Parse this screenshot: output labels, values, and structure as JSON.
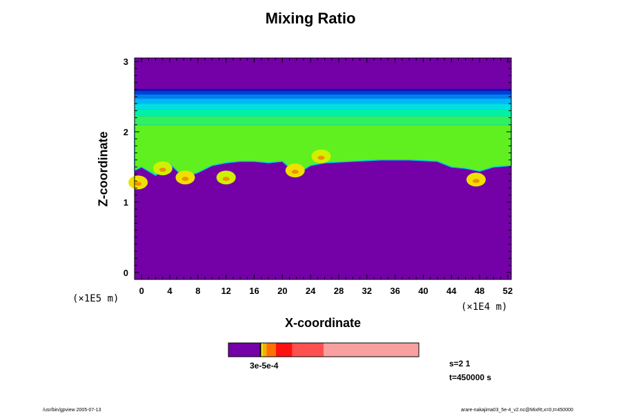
{
  "chart_data": {
    "type": "heatmap",
    "title": "Mixing Ratio",
    "xlabel": "X-coordinate",
    "ylabel": "Z-coordinate",
    "x_scale_label": "(×1E4 m)",
    "y_scale_label": "(×1E5 m)",
    "xlim": [
      -1,
      52.5
    ],
    "ylim": [
      -0.1,
      3.05
    ],
    "x_ticks": [
      "0",
      "4",
      "8",
      "12",
      "16",
      "20",
      "24",
      "28",
      "32",
      "36",
      "40",
      "44",
      "48",
      "52"
    ],
    "x_tick_values": [
      0,
      4,
      8,
      12,
      16,
      20,
      24,
      28,
      32,
      36,
      40,
      44,
      48,
      52
    ],
    "y_ticks": [
      "0",
      "1",
      "2",
      "3"
    ],
    "y_tick_values": [
      0,
      1,
      2,
      3
    ],
    "background_color": "#7400a8",
    "layers": [
      {
        "z_bottom": 2.58,
        "z_top": 2.61,
        "color": "#0018b8"
      },
      {
        "z_bottom": 2.53,
        "z_top": 2.58,
        "color": "#0040d8"
      },
      {
        "z_bottom": 2.47,
        "z_top": 2.53,
        "color": "#0080f0"
      },
      {
        "z_bottom": 2.4,
        "z_top": 2.47,
        "color": "#00b8f8"
      },
      {
        "z_bottom": 2.32,
        "z_top": 2.4,
        "color": "#00e0e0"
      },
      {
        "z_bottom": 2.22,
        "z_top": 2.32,
        "color": "#00f0a8"
      },
      {
        "z_bottom": 2.1,
        "z_top": 2.22,
        "color": "#30f060"
      }
    ],
    "boundary_layer": {
      "color": "#60f020",
      "top_z": 2.1,
      "bottom_x": [
        -1,
        0,
        2,
        4,
        6,
        8,
        10,
        12,
        14,
        16,
        18,
        20,
        22,
        24,
        26,
        28,
        30,
        32,
        34,
        36,
        38,
        40,
        42,
        44,
        46,
        48,
        50,
        52.5
      ],
      "bottom_z": [
        1.45,
        1.5,
        1.38,
        1.55,
        1.35,
        1.42,
        1.52,
        1.56,
        1.58,
        1.58,
        1.56,
        1.58,
        1.4,
        1.52,
        1.56,
        1.57,
        1.58,
        1.59,
        1.6,
        1.6,
        1.6,
        1.59,
        1.58,
        1.5,
        1.48,
        1.44,
        1.5,
        1.52
      ]
    },
    "plumes": [
      {
        "x": 3,
        "z": 1.48,
        "color": "#d0f000"
      },
      {
        "x": 6.2,
        "z": 1.35,
        "color": "#f0e000"
      },
      {
        "x": 12,
        "z": 1.35,
        "color": "#d0f000"
      },
      {
        "x": 21.8,
        "z": 1.45,
        "color": "#f0e000"
      },
      {
        "x": 25.5,
        "z": 1.65,
        "color": "#d0f000"
      },
      {
        "x": 47.5,
        "z": 1.32,
        "color": "#f0e000"
      },
      {
        "x": -0.5,
        "z": 1.28,
        "color": "#f0e000"
      }
    ],
    "colorbar": {
      "label": "3e-5e-4",
      "segments": [
        {
          "fraction": 0.165,
          "color": "#7400a8"
        },
        {
          "fraction": 0.007,
          "color": "#000000"
        },
        {
          "fraction": 0.008,
          "color": "#f0f000"
        },
        {
          "fraction": 0.02,
          "color": "#f0b000"
        },
        {
          "fraction": 0.05,
          "color": "#ff7000"
        },
        {
          "fraction": 0.085,
          "color": "#ff1010"
        },
        {
          "fraction": 0.165,
          "color": "#ff5050"
        },
        {
          "fraction": 0.5,
          "color": "#f8a0a0"
        }
      ]
    }
  },
  "info": {
    "s_label": "s=2 1",
    "time_label": "t=450000 s"
  },
  "footer": {
    "left": "/usr/bin/gpview 2005-07-13",
    "right": "arare-nakajima03_5e-4_v2.nc@MixRt,x=0,t=450000"
  }
}
